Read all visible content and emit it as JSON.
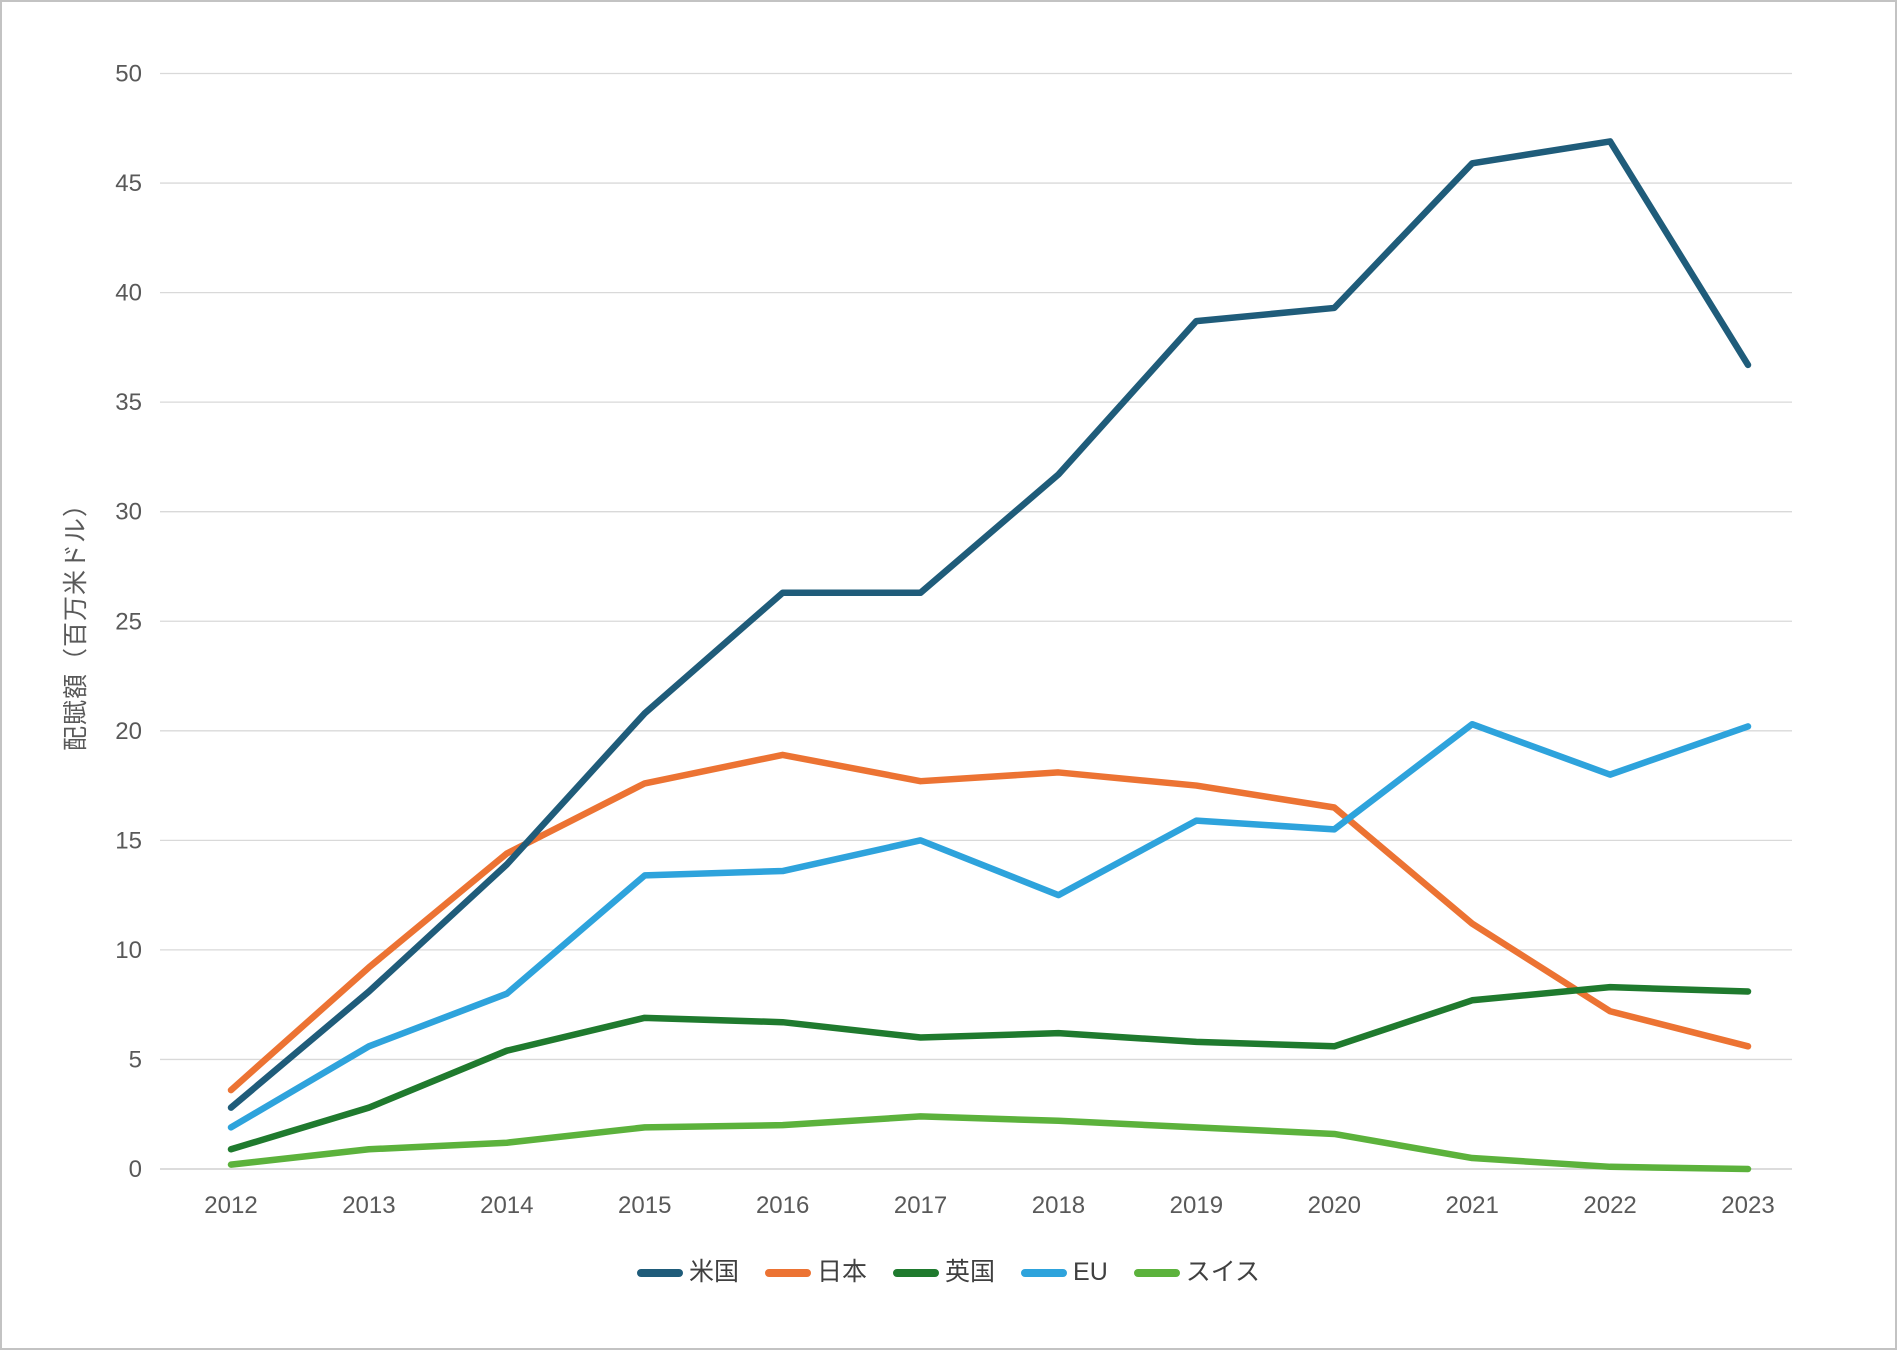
{
  "chart_data": {
    "type": "line",
    "title": "",
    "ylabel": "配賦額（百万米ドル）",
    "xlabel": "",
    "ylim": [
      0,
      50
    ],
    "ytick_step": 5,
    "y_ticks": [
      0,
      5,
      10,
      15,
      20,
      25,
      30,
      35,
      40,
      45,
      50
    ],
    "grid": true,
    "legend_position": "bottom",
    "categories": [
      "2012",
      "2013",
      "2014",
      "2015",
      "2016",
      "2017",
      "2018",
      "2019",
      "2020",
      "2021",
      "2022",
      "2023"
    ],
    "series": [
      {
        "name": "米国",
        "color": "#1f5c7a",
        "values": [
          2.8,
          8.1,
          13.9,
          20.8,
          26.3,
          26.3,
          31.7,
          38.7,
          39.3,
          45.9,
          46.9,
          36.7
        ]
      },
      {
        "name": "日本",
        "color": "#ec7333",
        "values": [
          3.6,
          9.2,
          14.4,
          17.6,
          18.9,
          17.7,
          18.1,
          17.5,
          16.5,
          11.2,
          7.2,
          5.6
        ]
      },
      {
        "name": "英国",
        "color": "#1f7a2e",
        "values": [
          0.9,
          2.8,
          5.4,
          6.9,
          6.7,
          6.0,
          6.2,
          5.8,
          5.6,
          7.7,
          8.3,
          8.1
        ]
      },
      {
        "name": "EU",
        "color": "#2ea3dc",
        "values": [
          1.9,
          5.6,
          8.0,
          13.4,
          13.6,
          15.0,
          12.5,
          15.9,
          15.5,
          20.3,
          18.0,
          20.2
        ]
      },
      {
        "name": "スイス",
        "color": "#5cb23c",
        "values": [
          0.2,
          0.9,
          1.2,
          1.9,
          2.0,
          2.4,
          2.2,
          1.9,
          1.6,
          0.5,
          0.1,
          0.0
        ]
      }
    ],
    "colors": {
      "gridline": "#d9d9d9",
      "axis_line": "#c6c6c6",
      "tick_text": "#595959",
      "legend_text": "#404040",
      "background": "#ffffff"
    }
  }
}
